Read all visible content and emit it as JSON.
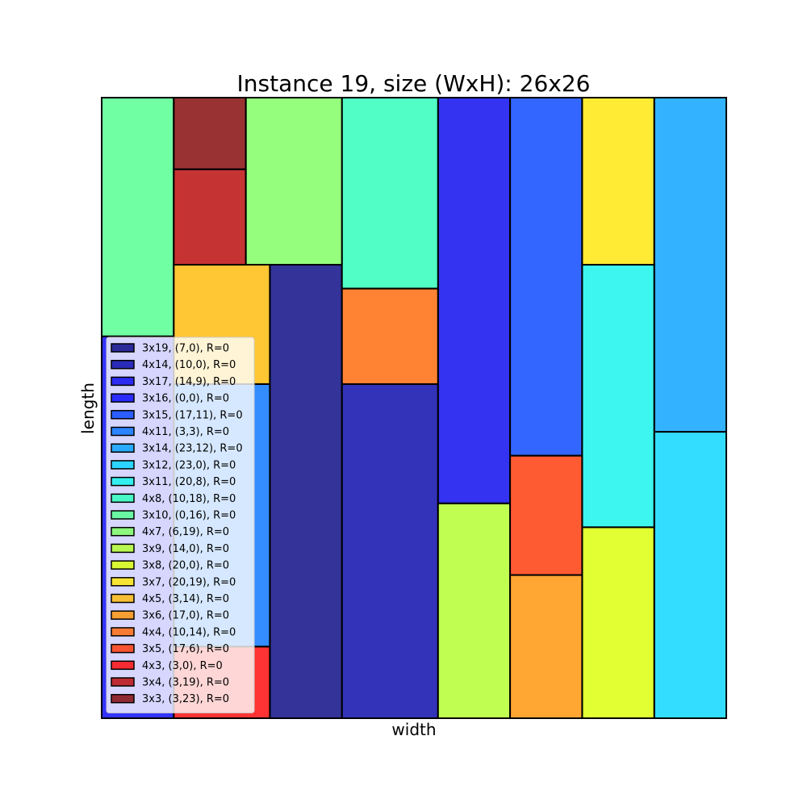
{
  "chart_data": {
    "type": "rectangle-packing",
    "title": "Instance 19, size (WxH): 26x26",
    "xlabel": "width",
    "ylabel": "length",
    "xlim": [
      0,
      26
    ],
    "ylim": [
      0,
      26
    ],
    "container": {
      "width": 26,
      "height": 26
    },
    "legend_position": "lower-left",
    "rectangles": [
      {
        "label": "3x19, (7,0), R=0",
        "w": 3,
        "h": 19,
        "x": 7,
        "y": 0,
        "color": "#000080"
      },
      {
        "label": "4x14, (10,0), R=0",
        "w": 4,
        "h": 14,
        "x": 10,
        "y": 0,
        "color": "#0000a7"
      },
      {
        "label": "3x17, (14,9), R=0",
        "w": 3,
        "h": 17,
        "x": 14,
        "y": 9,
        "color": "#0000ed"
      },
      {
        "label": "3x16, (0,0), R=0",
        "w": 3,
        "h": 16,
        "x": 0,
        "y": 0,
        "color": "#0000ff"
      },
      {
        "label": "3x15, (17,11), R=0",
        "w": 3,
        "h": 15,
        "x": 17,
        "y": 11,
        "color": "#0040ff"
      },
      {
        "label": "4x11, (3,3), R=0",
        "w": 4,
        "h": 11,
        "x": 3,
        "y": 3,
        "color": "#0070ff"
      },
      {
        "label": "3x14, (23,12), R=0",
        "w": 3,
        "h": 14,
        "x": 23,
        "y": 12,
        "color": "#00a0ff"
      },
      {
        "label": "3x12, (23,0), R=0",
        "w": 3,
        "h": 12,
        "x": 23,
        "y": 0,
        "color": "#00d4ff"
      },
      {
        "label": "3x11, (20,8), R=0",
        "w": 3,
        "h": 11,
        "x": 20,
        "y": 8,
        "color": "#0cf4eb"
      },
      {
        "label": "4x8, (10,18), R=0",
        "w": 4,
        "h": 8,
        "x": 10,
        "y": 18,
        "color": "#26ffb8"
      },
      {
        "label": "3x10, (0,16), R=0",
        "w": 3,
        "h": 10,
        "x": 0,
        "y": 16,
        "color": "#4dff8c"
      },
      {
        "label": "4x7, (6,19), R=0",
        "w": 4,
        "h": 7,
        "x": 6,
        "y": 19,
        "color": "#7aff5c"
      },
      {
        "label": "3x9, (14,0), R=0",
        "w": 3,
        "h": 9,
        "x": 14,
        "y": 0,
        "color": "#b0ff26"
      },
      {
        "label": "3x8, (20,0), R=0",
        "w": 3,
        "h": 8,
        "x": 20,
        "y": 0,
        "color": "#daff00"
      },
      {
        "label": "3x7, (20,19), R=0",
        "w": 3,
        "h": 7,
        "x": 20,
        "y": 19,
        "color": "#ffe600"
      },
      {
        "label": "4x5, (3,14), R=0",
        "w": 4,
        "h": 5,
        "x": 3,
        "y": 14,
        "color": "#ffb900"
      },
      {
        "label": "3x6, (17,0), R=0",
        "w": 3,
        "h": 6,
        "x": 17,
        "y": 0,
        "color": "#ff9000"
      },
      {
        "label": "4x4, (10,14), R=0",
        "w": 4,
        "h": 4,
        "x": 10,
        "y": 14,
        "color": "#ff6400"
      },
      {
        "label": "3x5, (17,6), R=0",
        "w": 3,
        "h": 5,
        "x": 17,
        "y": 6,
        "color": "#ff3200"
      },
      {
        "label": "4x3, (3,0), R=0",
        "w": 4,
        "h": 3,
        "x": 3,
        "y": 0,
        "color": "#ff0000"
      },
      {
        "label": "3x4, (3,19), R=0",
        "w": 3,
        "h": 4,
        "x": 3,
        "y": 19,
        "color": "#b80000"
      },
      {
        "label": "3x3, (3,23), R=0",
        "w": 3,
        "h": 3,
        "x": 3,
        "y": 23,
        "color": "#800000"
      }
    ]
  }
}
